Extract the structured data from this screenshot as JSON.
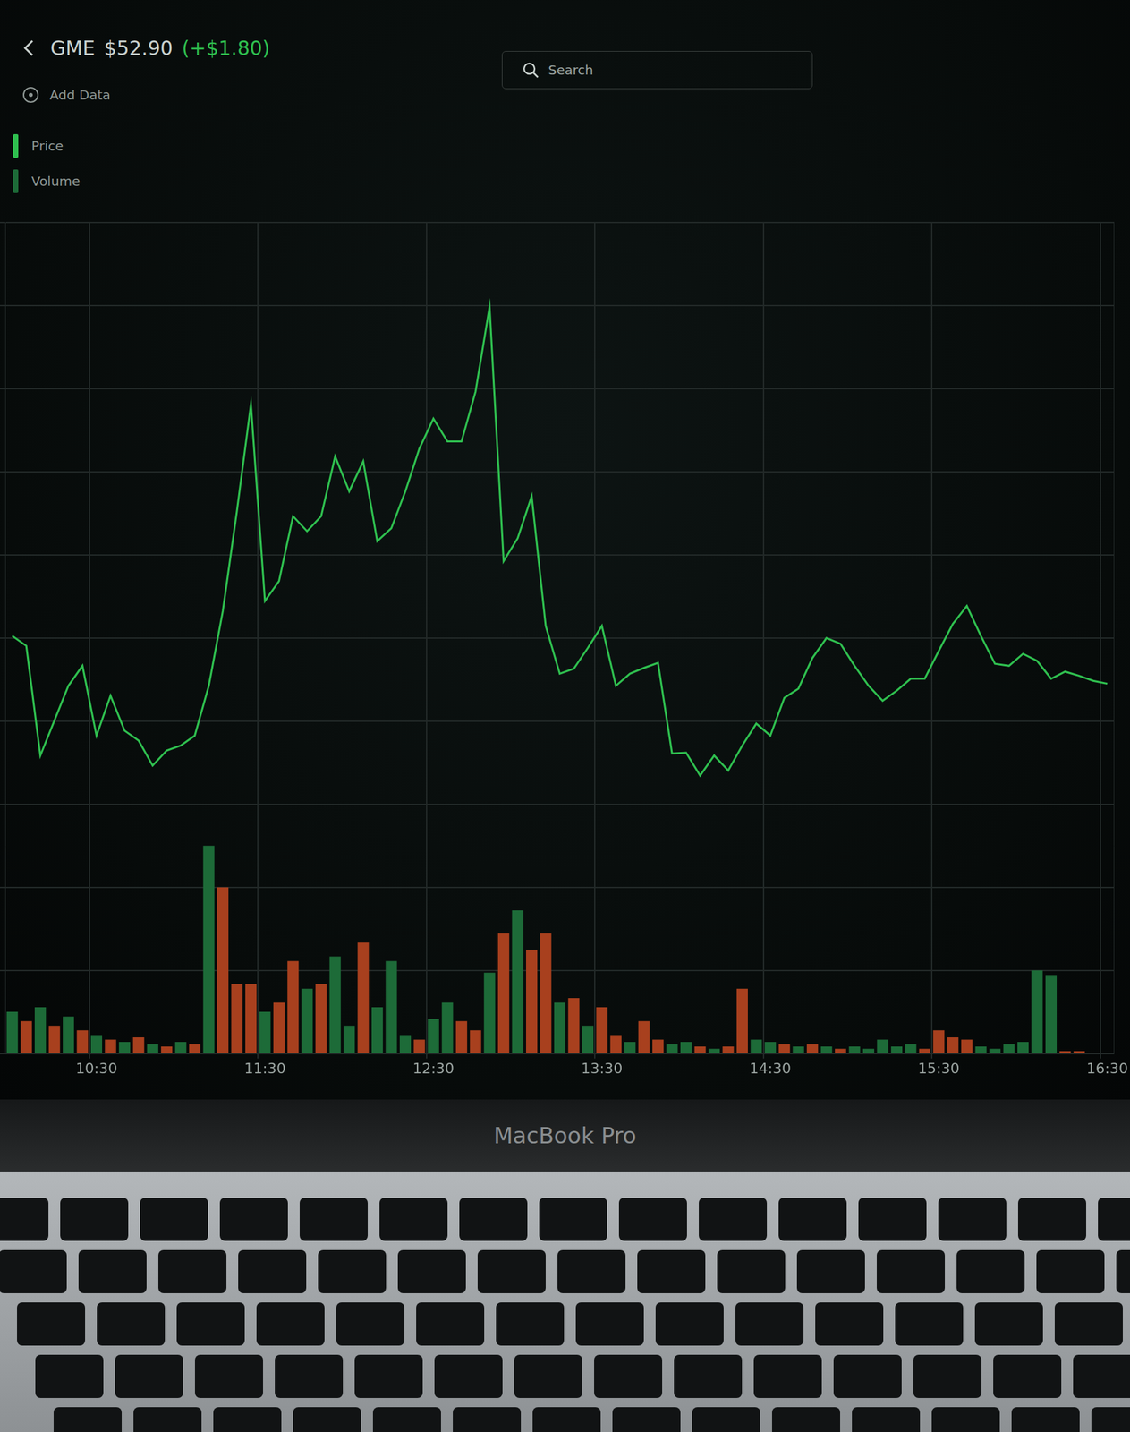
{
  "header": {
    "ticker": "GME",
    "price": "$52.90",
    "change": "(+$1.80)",
    "add_data": "Add Data",
    "search": "Search"
  },
  "device_label": "MacBook Pro",
  "chart_data": {
    "type": "line",
    "categories": [
      null,
      null,
      null,
      null,
      null,
      null,
      "10:30",
      null,
      null,
      null,
      null,
      null,
      null,
      null,
      null,
      null,
      null,
      null,
      "11:30",
      null,
      null,
      null,
      null,
      null,
      null,
      null,
      null,
      null,
      null,
      null,
      "12:30",
      null,
      null,
      null,
      null,
      null,
      null,
      null,
      null,
      null,
      null,
      null,
      "13:30",
      null,
      null,
      null,
      null,
      null,
      null,
      null,
      null,
      null,
      null,
      null,
      "14:30",
      null,
      null,
      null,
      null,
      null,
      null,
      null,
      null,
      null,
      null,
      null,
      "15:30",
      null,
      null,
      null,
      null,
      null,
      null,
      null,
      null,
      null,
      null,
      null,
      "16:30"
    ],
    "series": [
      {
        "name": "Price",
        "type": "line",
        "color": "#2fbf4f",
        "values": [
          54.05,
          53.81,
          51.17,
          52.01,
          52.85,
          53.33,
          51.65,
          52.61,
          51.77,
          51.53,
          50.93,
          51.29,
          51.41,
          51.65,
          52.85,
          54.65,
          57.05,
          59.62,
          54.89,
          55.37,
          56.93,
          56.57,
          56.93,
          58.37,
          57.53,
          58.25,
          56.33,
          56.64,
          57.53,
          58.56,
          59.28,
          58.73,
          58.73,
          59.93,
          61.97,
          55.85,
          56.4,
          57.41,
          54.29,
          53.14,
          53.26,
          53.76,
          54.29,
          52.85,
          53.14,
          53.28,
          53.4,
          51.22,
          51.24,
          50.69,
          51.17,
          50.81,
          51.41,
          51.94,
          51.65,
          52.56,
          52.78,
          53.52,
          54.0,
          53.86,
          53.33,
          52.85,
          52.49,
          52.73,
          53.02,
          53.02,
          53.69,
          54.34,
          54.77,
          54.05,
          53.38,
          53.33,
          53.62,
          53.45,
          53.02,
          53.19,
          53.09,
          52.97,
          52.9
        ]
      },
      {
        "name": "Volume",
        "type": "bar",
        "axis": "y2",
        "color": "#1d6b38",
        "colors": [
          "#1d6b38",
          "#a8401e",
          "#1d6b38",
          "#a8401e",
          "#1d6b38",
          "#a8401e",
          "#1d6b38",
          "#a8401e",
          "#1d6b38",
          "#a8401e",
          "#1d6b38",
          "#a8401e",
          "#1d6b38",
          "#a8401e",
          "#1d6b38",
          "#a8401e",
          "#a8401e",
          "#a8401e",
          "#1d6b38",
          "#a8401e",
          "#a8401e",
          "#1d6b38",
          "#a8401e",
          "#1d6b38",
          "#1d6b38",
          "#a8401e",
          "#1d6b38",
          "#1d6b38",
          "#1d6b38",
          "#a8401e",
          "#1d6b38",
          "#1d6b38",
          "#a8401e",
          "#a8401e",
          "#1d6b38",
          "#a8401e",
          "#1d6b38",
          "#a8401e",
          "#a8401e",
          "#1d6b38",
          "#a8401e",
          "#1d6b38",
          "#a8401e",
          "#a8401e",
          "#1d6b38",
          "#a8401e",
          "#a8401e",
          "#1d6b38",
          "#1d6b38",
          "#a8401e",
          "#1d6b38",
          "#a8401e",
          "#a8401e",
          "#1d6b38",
          "#1d6b38",
          "#a8401e",
          "#1d6b38",
          "#a8401e",
          "#1d6b38",
          "#a8401e",
          "#1d6b38",
          "#1d6b38",
          "#1d6b38",
          "#1d6b38",
          "#1d6b38",
          "#a8401e",
          "#a8401e",
          "#a8401e",
          "#a8401e",
          "#1d6b38",
          "#1d6b38",
          "#1d6b38",
          "#1d6b38",
          "#1d6b38",
          "#1d6b38",
          "#a8401e",
          "#a8401e",
          "#1d6b38",
          "#1d6b38"
        ],
        "values": [
          18,
          14,
          20,
          12,
          16,
          10,
          8,
          6,
          5,
          7,
          4,
          3,
          5,
          4,
          90,
          72,
          30,
          30,
          18,
          22,
          40,
          28,
          30,
          42,
          12,
          48,
          20,
          40,
          8,
          6,
          15,
          22,
          14,
          10,
          35,
          52,
          62,
          45,
          52,
          22,
          24,
          12,
          20,
          8,
          5,
          14,
          6,
          4,
          5,
          3,
          2,
          3,
          28,
          6,
          5,
          4,
          3,
          4,
          3,
          2,
          3,
          2,
          6,
          3,
          4,
          2,
          10,
          7,
          6,
          3,
          2,
          4,
          5,
          36,
          34,
          1,
          1,
          0,
          0
        ]
      }
    ],
    "ylim": [
      44,
      64
    ],
    "yticks": [
      44,
      46,
      48,
      50,
      52,
      54,
      56,
      58,
      60,
      62,
      64
    ],
    "y2lim": [
      0,
      360
    ],
    "y2ticks": [
      0,
      90,
      180,
      270,
      360
    ],
    "grid": true,
    "legend": "top-left",
    "tick_labels": "x"
  }
}
